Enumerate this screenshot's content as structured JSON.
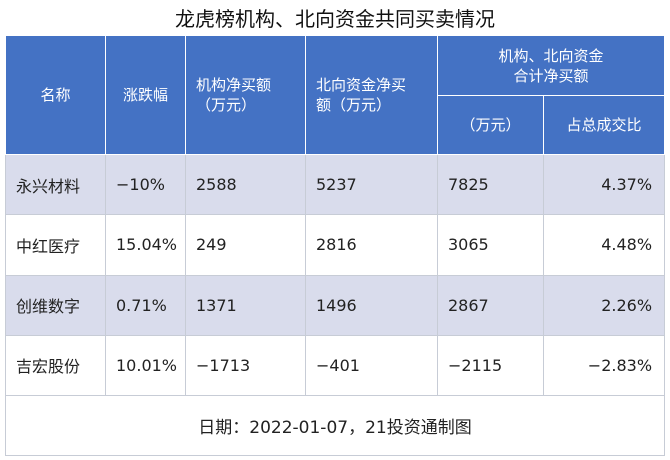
{
  "title": "龙虎榜机构、北向资金共同买卖情况",
  "headers": {
    "name": "名称",
    "change": "涨跌幅",
    "inst": "机构净买额\n（万元）",
    "north": "北向资金净买\n额（万元）",
    "combined": "机构、北向资金\n合计净买额",
    "combined_unit": "（万元）",
    "ratio": "占总成交比"
  },
  "rows": [
    {
      "name": "永兴材料",
      "change": "−10%",
      "inst": "2588",
      "north": "5237",
      "combined": "7825",
      "ratio": "4.37%"
    },
    {
      "name": "中红医疗",
      "change": "15.04%",
      "inst": "249",
      "north": "2816",
      "combined": "3065",
      "ratio": "4.48%"
    },
    {
      "name": "创维数字",
      "change": "0.71%",
      "inst": "1371",
      "north": "1496",
      "combined": "2867",
      "ratio": "2.26%"
    },
    {
      "name": "吉宏股份",
      "change": "10.01%",
      "inst": "−1713",
      "north": "−401",
      "combined": "−2115",
      "ratio": "−2.83%"
    }
  ],
  "footer": "日期：2022-01-07，21投资通制图"
}
